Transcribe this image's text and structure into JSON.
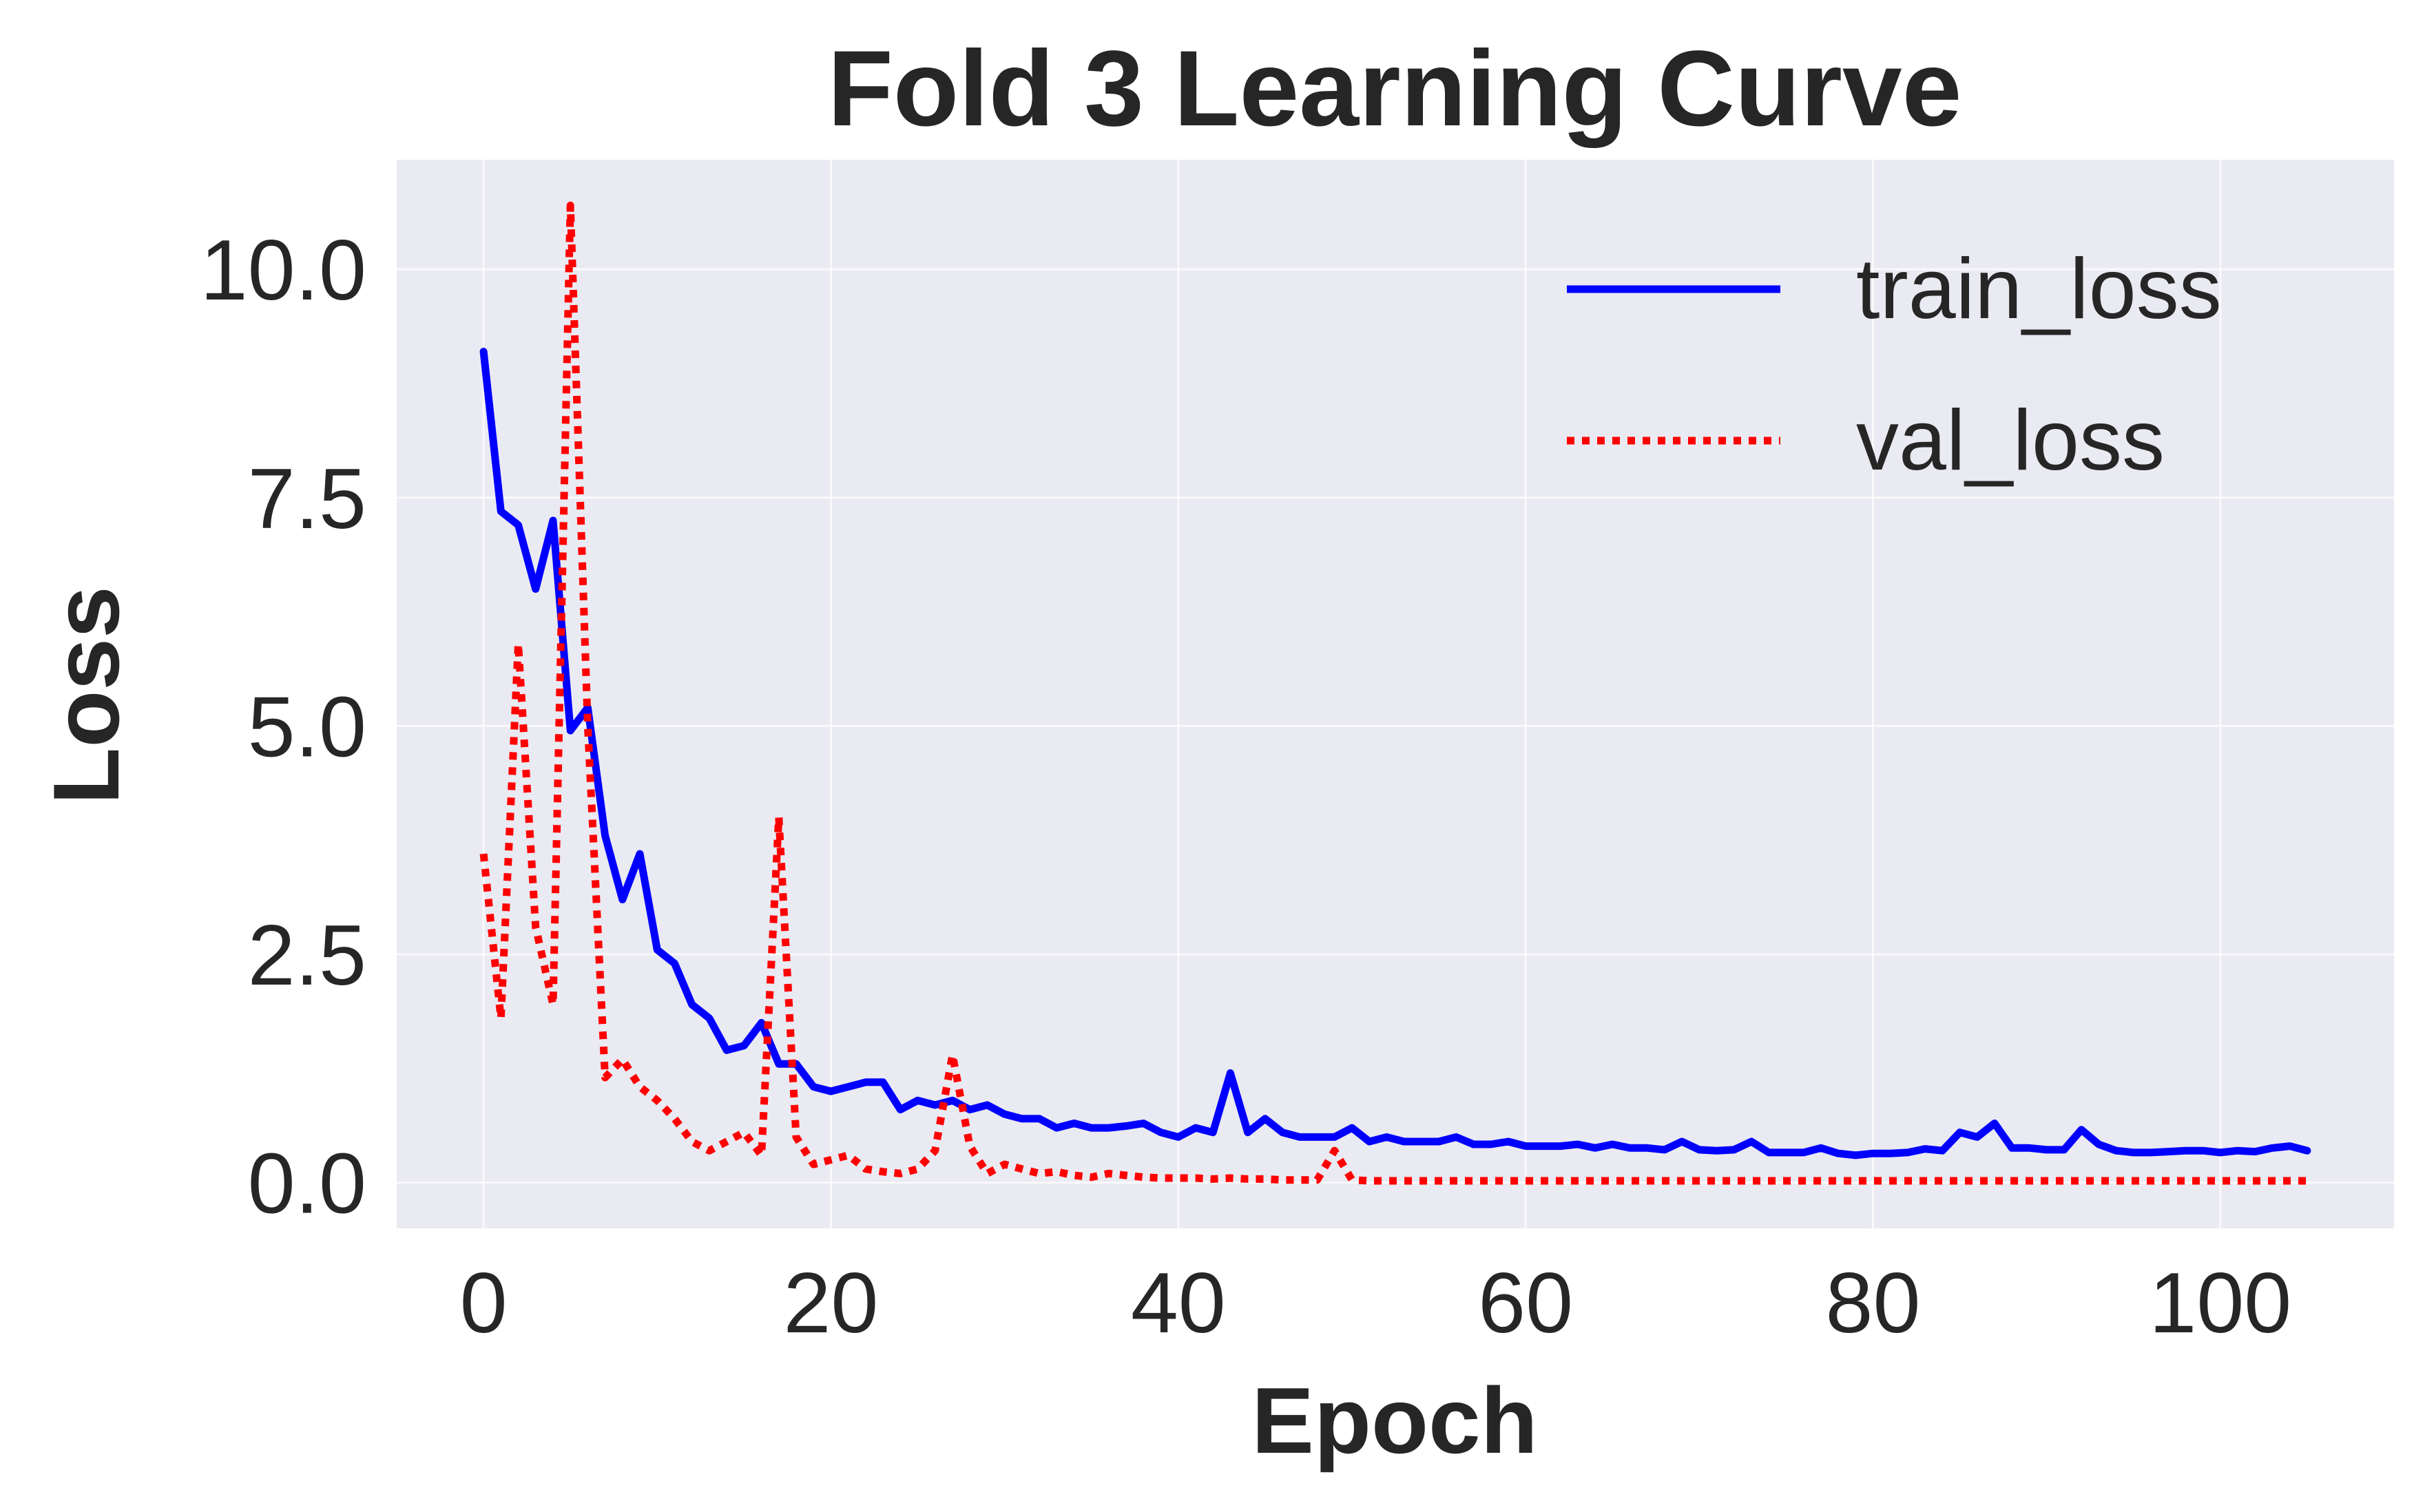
{
  "chart_data": {
    "type": "line",
    "title": "Fold 3 Learning Curve",
    "xlabel": "Epoch",
    "ylabel": "Loss",
    "xlim": [
      -5,
      110
    ],
    "ylim": [
      -0.5,
      11.2
    ],
    "x_ticks": [
      0,
      20,
      40,
      60,
      80,
      100
    ],
    "x_tick_labels": [
      "0",
      "20",
      "40",
      "60",
      "80",
      "100"
    ],
    "y_ticks": [
      0.0,
      2.5,
      5.0,
      7.5,
      10.0
    ],
    "y_tick_labels": [
      "0.0",
      "2.5",
      "5.0",
      "7.5",
      "10.0"
    ],
    "grid": true,
    "background": "#EAEAF2",
    "legend_position": "top-right",
    "series": [
      {
        "name": "train_loss",
        "color": "#0000FF",
        "style": "solid",
        "x": [
          0,
          1,
          2,
          3,
          4,
          5,
          6,
          7,
          8,
          9,
          10,
          11,
          12,
          13,
          14,
          15,
          16,
          17,
          18,
          19,
          20,
          21,
          22,
          23,
          24,
          25,
          26,
          27,
          28,
          29,
          30,
          31,
          32,
          33,
          34,
          35,
          36,
          37,
          38,
          39,
          40,
          41,
          42,
          43,
          44,
          45,
          46,
          47,
          48,
          49,
          50,
          51,
          52,
          53,
          54,
          55,
          56,
          57,
          58,
          59,
          60,
          61,
          62,
          63,
          64,
          65,
          66,
          67,
          68,
          69,
          70,
          71,
          72,
          73,
          74,
          75,
          76,
          77,
          78,
          79,
          80,
          81,
          82,
          83,
          84,
          85,
          86,
          87,
          88,
          89,
          90,
          91,
          92,
          93,
          94,
          95,
          96,
          97,
          98,
          99,
          100,
          101,
          102,
          103,
          104,
          105
        ],
        "values": [
          9.1,
          7.35,
          7.2,
          6.5,
          7.25,
          4.95,
          5.2,
          3.8,
          3.1,
          3.6,
          2.55,
          2.4,
          1.95,
          1.8,
          1.45,
          1.5,
          1.75,
          1.3,
          1.3,
          1.05,
          1.0,
          1.05,
          1.1,
          1.1,
          0.8,
          0.9,
          0.85,
          0.9,
          0.8,
          0.85,
          0.75,
          0.7,
          0.7,
          0.6,
          0.65,
          0.6,
          0.6,
          0.62,
          0.65,
          0.55,
          0.5,
          0.6,
          0.55,
          1.2,
          0.55,
          0.7,
          0.55,
          0.5,
          0.5,
          0.5,
          0.6,
          0.45,
          0.5,
          0.45,
          0.45,
          0.45,
          0.5,
          0.42,
          0.42,
          0.45,
          0.4,
          0.4,
          0.4,
          0.42,
          0.38,
          0.42,
          0.38,
          0.38,
          0.36,
          0.45,
          0.36,
          0.35,
          0.36,
          0.45,
          0.33,
          0.33,
          0.33,
          0.38,
          0.32,
          0.3,
          0.32,
          0.32,
          0.33,
          0.37,
          0.35,
          0.55,
          0.5,
          0.65,
          0.38,
          0.38,
          0.36,
          0.36,
          0.58,
          0.42,
          0.35,
          0.33,
          0.33,
          0.34,
          0.35,
          0.35,
          0.33,
          0.35,
          0.34,
          0.38,
          0.4,
          0.35
        ]
      },
      {
        "name": "val_loss",
        "color": "#FF0000",
        "style": "dotted",
        "x": [
          0,
          1,
          2,
          3,
          4,
          5,
          6,
          7,
          8,
          9,
          10,
          11,
          12,
          13,
          14,
          15,
          16,
          17,
          18,
          19,
          20,
          21,
          22,
          23,
          24,
          25,
          26,
          27,
          28,
          29,
          30,
          31,
          32,
          33,
          34,
          35,
          36,
          37,
          38,
          39,
          40,
          41,
          42,
          43,
          44,
          45,
          46,
          47,
          48,
          49,
          50,
          51,
          52,
          53,
          54,
          55,
          56,
          57,
          58,
          59,
          60,
          61,
          62,
          63,
          64,
          65,
          66,
          67,
          68,
          69,
          70,
          71,
          72,
          73,
          74,
          75,
          76,
          77,
          78,
          79,
          80,
          81,
          82,
          83,
          84,
          85,
          86,
          87,
          88,
          89,
          90,
          91,
          92,
          93,
          94,
          95,
          96,
          97,
          98,
          99,
          100,
          101,
          102,
          103,
          104,
          105
        ],
        "values": [
          3.6,
          1.8,
          5.9,
          2.8,
          1.95,
          10.7,
          5.0,
          1.15,
          1.35,
          1.05,
          0.9,
          0.7,
          0.45,
          0.35,
          0.45,
          0.55,
          0.3,
          4.0,
          0.5,
          0.2,
          0.25,
          0.3,
          0.15,
          0.12,
          0.1,
          0.15,
          0.35,
          1.4,
          0.4,
          0.1,
          0.2,
          0.15,
          0.1,
          0.12,
          0.08,
          0.06,
          0.1,
          0.08,
          0.06,
          0.05,
          0.05,
          0.05,
          0.04,
          0.05,
          0.04,
          0.04,
          0.03,
          0.03,
          0.03,
          0.35,
          0.03,
          0.02,
          0.02,
          0.02,
          0.02,
          0.02,
          0.02,
          0.02,
          0.02,
          0.02,
          0.02,
          0.02,
          0.02,
          0.02,
          0.02,
          0.02,
          0.02,
          0.02,
          0.02,
          0.02,
          0.02,
          0.02,
          0.02,
          0.02,
          0.02,
          0.02,
          0.02,
          0.02,
          0.02,
          0.02,
          0.02,
          0.02,
          0.02,
          0.02,
          0.02,
          0.02,
          0.02,
          0.02,
          0.02,
          0.02,
          0.02,
          0.02,
          0.02,
          0.02,
          0.02,
          0.02,
          0.02,
          0.02,
          0.02,
          0.02,
          0.02,
          0.02,
          0.02,
          0.02,
          0.02,
          0.02
        ]
      }
    ]
  }
}
